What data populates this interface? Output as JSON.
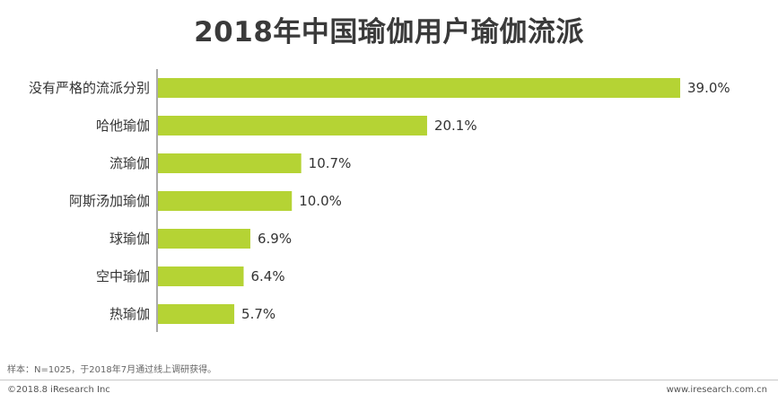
{
  "chart_data": {
    "type": "bar",
    "orientation": "horizontal",
    "title": "2018年中国瑜伽用户瑜伽流派",
    "categories": [
      "没有严格的流派分别",
      "哈他瑜伽",
      "流瑜伽",
      "阿斯汤加瑜伽",
      "球瑜伽",
      "空中瑜伽",
      "热瑜伽"
    ],
    "values": [
      39.0,
      20.1,
      10.7,
      10.0,
      6.9,
      6.4,
      5.7
    ],
    "value_labels": [
      "39.0%",
      "20.1%",
      "10.7%",
      "10.0%",
      "6.9%",
      "6.4%",
      "5.7%"
    ],
    "xlim": [
      0,
      40
    ],
    "grid": false,
    "bar_color": "#b5d334",
    "axis_color": "#555555"
  },
  "footer": {
    "source": "样本：N=1025，于2018年7月通过线上调研获得。",
    "copyright": "©2018.8 iResearch Inc",
    "website": "www.iresearch.com.cn"
  }
}
